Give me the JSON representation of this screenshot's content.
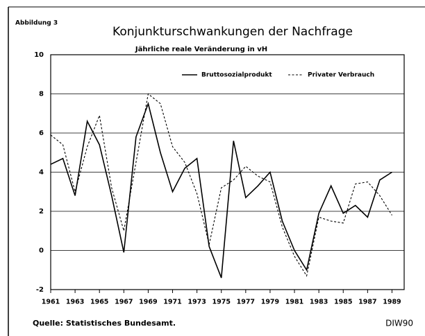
{
  "chart_data": {
    "type": "line",
    "figure_label": "Abbildung 3",
    "title": "Konjunkturschwankungen der Nachfrage",
    "subtitle": "Jährliche reale Veränderung in vH",
    "source": "Quelle: Statistisches Bundesamt.",
    "credit": "DIW90",
    "x": [
      1961,
      1962,
      1963,
      1964,
      1965,
      1966,
      1967,
      1968,
      1969,
      1970,
      1971,
      1972,
      1973,
      1974,
      1975,
      1976,
      1977,
      1978,
      1979,
      1980,
      1981,
      1982,
      1983,
      1984,
      1985,
      1986,
      1987,
      1988,
      1989
    ],
    "series": [
      {
        "name": "Bruttosozialprodukt",
        "color": "#000000",
        "dash": "solid",
        "values": [
          4.4,
          4.7,
          2.8,
          6.6,
          5.4,
          2.8,
          -0.1,
          5.8,
          7.5,
          5.0,
          3.0,
          4.2,
          4.7,
          0.2,
          -1.4,
          5.6,
          2.7,
          3.3,
          4.0,
          1.5,
          0.0,
          -1.0,
          1.9,
          3.3,
          1.9,
          2.3,
          1.7,
          3.6,
          4.0
        ]
      },
      {
        "name": "Privater Verbrauch",
        "color": "#000000",
        "dash": "dashed",
        "values": [
          5.9,
          5.4,
          3.0,
          5.3,
          6.9,
          3.2,
          1.0,
          4.5,
          8.0,
          7.5,
          5.3,
          4.5,
          2.9,
          0.3,
          3.2,
          3.6,
          4.3,
          3.8,
          3.5,
          1.2,
          -0.3,
          -1.3,
          1.7,
          1.5,
          1.4,
          3.4,
          3.5,
          2.8,
          1.8
        ]
      }
    ],
    "xlim": [
      1961,
      1990
    ],
    "xticks": [
      1961,
      1963,
      1965,
      1967,
      1969,
      1971,
      1973,
      1975,
      1977,
      1979,
      1981,
      1983,
      1985,
      1987,
      1989
    ],
    "ylim": [
      -2,
      10
    ],
    "yticks": [
      -2,
      0,
      2,
      4,
      6,
      8,
      10
    ],
    "grid": true,
    "legend": "top-right"
  }
}
